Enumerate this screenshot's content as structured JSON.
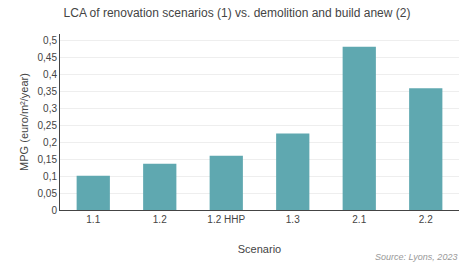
{
  "chart_data": {
    "type": "bar",
    "title": "LCA of renovation scenarios (1) vs. demolition and build anew (2)",
    "categories": [
      "1.1",
      "1.2",
      "1.2 HHP",
      "1.3",
      "2.1",
      "2.2"
    ],
    "values": [
      0.101,
      0.137,
      0.16,
      0.226,
      0.482,
      0.36
    ],
    "color": "#5fa8b0",
    "xlabel": "Scenario",
    "ylabel": "MPG (euro/m²/year)",
    "ylim": [
      0,
      0.52
    ],
    "yticks": [
      0,
      {
        "value": 0.05,
        "label": "0,05"
      },
      {
        "value": 0.1,
        "label": "0,1"
      },
      {
        "value": 0.15,
        "label": "0,15"
      },
      {
        "value": 0.2,
        "label": "0,2"
      },
      {
        "value": 0.25,
        "label": "0,25"
      },
      {
        "value": 0.3,
        "label": "0,3"
      },
      {
        "value": 0.35,
        "label": "0,35"
      },
      {
        "value": 0.4,
        "label": "0,4"
      },
      {
        "value": 0.45,
        "label": "0,45"
      },
      {
        "value": 0.5,
        "label": "0,5"
      }
    ],
    "grid": true,
    "annotations": [
      "Source: Lyons, 2023"
    ]
  }
}
